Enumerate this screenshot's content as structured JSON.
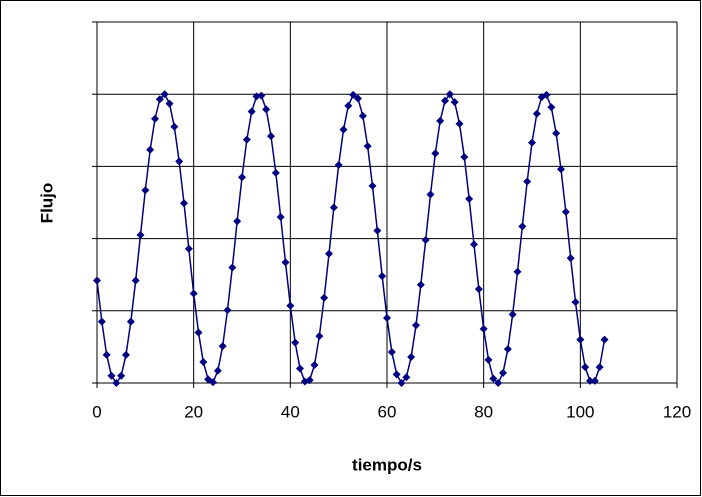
{
  "chart_data": {
    "type": "line",
    "x_label": "tiempo/s",
    "y_label": "Flujo",
    "color": "#000080",
    "marker": "diamond",
    "grid": true,
    "xlim": [
      0,
      120
    ],
    "xticks": [
      0,
      20,
      40,
      60,
      80,
      100,
      120
    ],
    "ylim": [
      0,
      5
    ],
    "yticks": [
      0,
      1,
      2,
      3,
      4,
      5
    ],
    "x": [
      0,
      1,
      2,
      3,
      4,
      5,
      6,
      7,
      8,
      9,
      10,
      11,
      12,
      13,
      14,
      15,
      16,
      17,
      18,
      19,
      20,
      21,
      22,
      23,
      24,
      25,
      26,
      27,
      28,
      29,
      30,
      31,
      32,
      33,
      34,
      35,
      36,
      37,
      38,
      39,
      40,
      41,
      42,
      43,
      44,
      45,
      46,
      47,
      48,
      49,
      50,
      51,
      52,
      53,
      54,
      55,
      56,
      57,
      58,
      59,
      60,
      61,
      62,
      63,
      64,
      65,
      66,
      67,
      68,
      69,
      70,
      71,
      72,
      73,
      74,
      75,
      76,
      77,
      78,
      79,
      80,
      81,
      82,
      83,
      84,
      85,
      86,
      87,
      88,
      89,
      90,
      91,
      92,
      93,
      94,
      95,
      96,
      97,
      98,
      99,
      100,
      101,
      102,
      103,
      104,
      105
    ],
    "values": [
      1.42,
      0.85,
      0.39,
      0.1,
      0,
      0.1,
      0.39,
      0.85,
      1.42,
      2.05,
      2.67,
      3.23,
      3.66,
      3.93,
      4.0,
      3.87,
      3.55,
      3.07,
      2.49,
      1.86,
      1.24,
      0.7,
      0.29,
      0.05,
      0.01,
      0.17,
      0.51,
      1.01,
      1.6,
      2.24,
      2.85,
      3.37,
      3.76,
      3.97,
      3.98,
      3.79,
      3.42,
      2.91,
      2.3,
      1.67,
      1.07,
      0.56,
      0.2,
      0.02,
      0.04,
      0.25,
      0.65,
      1.18,
      1.79,
      2.43,
      3.02,
      3.51,
      3.84,
      3.99,
      3.94,
      3.7,
      3.28,
      2.73,
      2.11,
      1.48,
      0.9,
      0.43,
      0.12,
      0.0,
      0.08,
      0.36,
      0.8,
      1.36,
      1.98,
      2.61,
      3.18,
      3.63,
      3.91,
      4.0,
      3.89,
      3.59,
      3.13,
      2.55,
      1.92,
      1.3,
      0.75,
      0.32,
      0.06,
      0.0,
      0.14,
      0.47,
      0.95,
      1.54,
      2.17,
      2.79,
      3.33,
      3.73,
      3.96,
      3.99,
      3.82,
      3.46,
      2.96,
      2.37,
      1.73,
      1.12,
      0.6,
      0.22,
      0.03,
      0.03,
      0.22,
      0.6
    ]
  }
}
